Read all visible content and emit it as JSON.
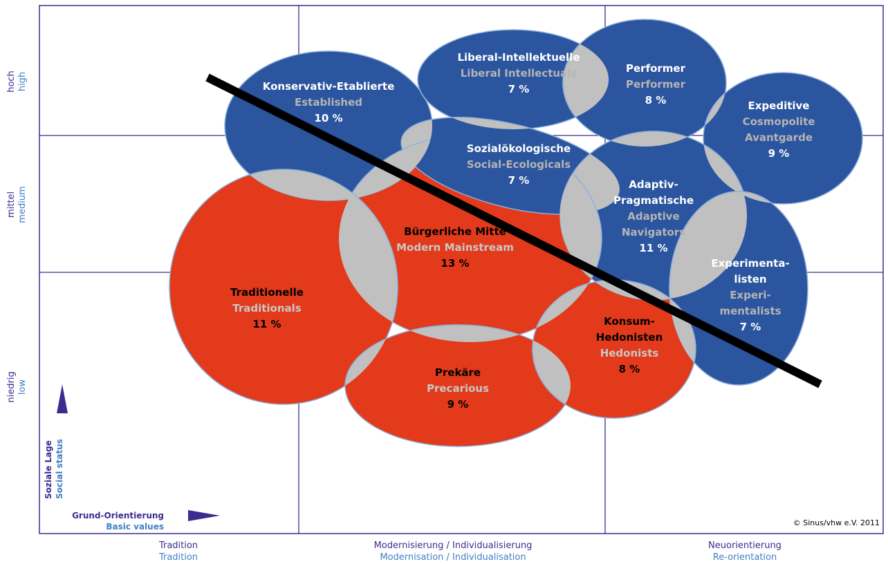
{
  "milieus": [
    {
      "name_de": [
        "Konservativ-Etablierte"
      ],
      "name_en": [
        "Established"
      ],
      "share": "10 %"
    },
    {
      "name_de": [
        "Liberal-Intellektuelle"
      ],
      "name_en": [
        "Liberal Intellectuals"
      ],
      "share": "7 %"
    },
    {
      "name_de": [
        "Performer"
      ],
      "name_en": [
        "Performer"
      ],
      "share": "8 %"
    },
    {
      "name_de": [
        "Expeditive"
      ],
      "name_en": [
        "Cosmopolite",
        "Avantgarde"
      ],
      "share": "9 %"
    },
    {
      "name_de": [
        "Sozialökologische"
      ],
      "name_en": [
        "Social-Ecologicals"
      ],
      "share": "7 %"
    },
    {
      "name_de": [
        "Adaptiv-",
        "Pragmatische"
      ],
      "name_en": [
        "Adaptive",
        "Navigators"
      ],
      "share": "11 %"
    },
    {
      "name_de": [
        "Experimenta-",
        "listen"
      ],
      "name_en": [
        "Experi-",
        "mentalists"
      ],
      "share": "7 %"
    },
    {
      "name_de": [
        "Bürgerliche Mitte"
      ],
      "name_en": [
        "Modern Mainstream"
      ],
      "share": "13 %"
    },
    {
      "name_de": [
        "Traditionelle"
      ],
      "name_en": [
        "Traditionals"
      ],
      "share": "11 %"
    },
    {
      "name_de": [
        "Prekäre"
      ],
      "name_en": [
        "Precarious"
      ],
      "share": "9 %"
    },
    {
      "name_de": [
        "Konsum-",
        "Hedonisten"
      ],
      "name_en": [
        "Hedonists"
      ],
      "share": "8 %"
    }
  ],
  "y_axis": {
    "levels": [
      {
        "de": "hoch",
        "en": "high"
      },
      {
        "de": "mittel",
        "en": "medium"
      },
      {
        "de": "niedrig",
        "en": "low"
      }
    ],
    "title_de": "Soziale Lage",
    "title_en": "Social status"
  },
  "x_axis": {
    "levels": [
      {
        "de": "Tradition",
        "en": "Tradition"
      },
      {
        "de": "Modernisierung / Individualisierung",
        "en": "Modernisation / Individualisation"
      },
      {
        "de": "Neuorientierung",
        "en": "Re-orientation"
      }
    ],
    "title_de": "Grund-Orientierung",
    "title_en": "Basic values"
  },
  "copyright": "© Sinus/vhw e.V. 2011"
}
